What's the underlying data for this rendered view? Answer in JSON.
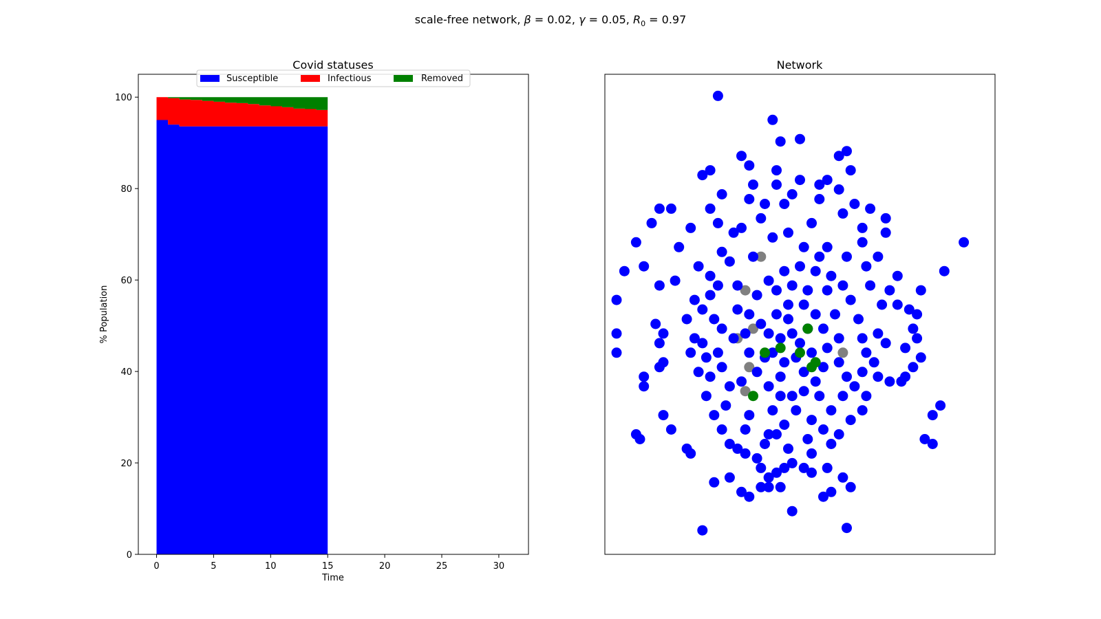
{
  "figure": {
    "suptitle_prefix": "scale-free network, ",
    "beta_symbol": "β",
    "beta_value": " = 0.02, ",
    "gamma_symbol": "γ",
    "gamma_value": " = 0.05, ",
    "r_symbol": "R",
    "r_subscript": "0",
    "r_value": " = 0.97"
  },
  "chart_data": [
    {
      "type": "area",
      "stacked": true,
      "title": "Covid statuses",
      "xlabel": "Time",
      "ylabel": "% Population",
      "xlim": [
        -1.6,
        32.6
      ],
      "ylim": [
        0,
        105
      ],
      "xticks": [
        0,
        5,
        10,
        15,
        20,
        25,
        30
      ],
      "yticks": [
        0,
        20,
        40,
        60,
        80,
        100
      ],
      "legend_position": "top-center",
      "x": [
        0,
        1,
        2,
        3,
        4,
        5,
        6,
        7,
        8,
        9,
        10,
        11,
        12,
        13,
        14,
        15
      ],
      "series": [
        {
          "name": "Susceptible",
          "color": "#0000ff",
          "values": [
            95.0,
            94.0,
            93.6,
            93.6,
            93.6,
            93.6,
            93.6,
            93.6,
            93.6,
            93.6,
            93.6,
            93.6,
            93.6,
            93.6,
            93.6,
            93.6
          ]
        },
        {
          "name": "Infectious",
          "color": "#ff0000",
          "values": [
            5.0,
            5.8,
            5.9,
            5.8,
            5.6,
            5.4,
            5.2,
            5.1,
            4.9,
            4.6,
            4.4,
            4.2,
            3.9,
            3.8,
            3.6,
            3.4
          ]
        },
        {
          "name": "Removed",
          "color": "#008000",
          "values": [
            0.0,
            0.2,
            0.5,
            0.6,
            0.8,
            1.0,
            1.2,
            1.3,
            1.5,
            1.8,
            2.0,
            2.2,
            2.5,
            2.6,
            2.8,
            3.0
          ]
        }
      ]
    },
    {
      "type": "scatter",
      "title": "Network",
      "axes_ticks": false,
      "node_colors": {
        "susceptible": "#0000ff",
        "removed": "#008000",
        "other": "#808080"
      },
      "xlim": [
        0,
        1
      ],
      "ylim": [
        0,
        1
      ],
      "nodes": {
        "susceptible": [
          [
            0.29,
            0.955
          ],
          [
            0.43,
            0.905
          ],
          [
            0.45,
            0.86
          ],
          [
            0.5,
            0.865
          ],
          [
            0.62,
            0.84
          ],
          [
            0.35,
            0.83
          ],
          [
            0.37,
            0.81
          ],
          [
            0.44,
            0.8
          ],
          [
            0.25,
            0.79
          ],
          [
            0.27,
            0.8
          ],
          [
            0.6,
            0.83
          ],
          [
            0.63,
            0.8
          ],
          [
            0.57,
            0.78
          ],
          [
            0.3,
            0.75
          ],
          [
            0.37,
            0.74
          ],
          [
            0.46,
            0.73
          ],
          [
            0.14,
            0.72
          ],
          [
            0.17,
            0.72
          ],
          [
            0.22,
            0.68
          ],
          [
            0.08,
            0.65
          ],
          [
            0.12,
            0.69
          ],
          [
            0.19,
            0.64
          ],
          [
            0.27,
            0.72
          ],
          [
            0.29,
            0.69
          ],
          [
            0.72,
            0.7
          ],
          [
            0.72,
            0.67
          ],
          [
            0.05,
            0.59
          ],
          [
            0.1,
            0.6
          ],
          [
            0.03,
            0.53
          ],
          [
            0.18,
            0.57
          ],
          [
            0.14,
            0.56
          ],
          [
            0.81,
            0.55
          ],
          [
            0.92,
            0.65
          ],
          [
            0.87,
            0.59
          ],
          [
            0.43,
            0.66
          ],
          [
            0.51,
            0.64
          ],
          [
            0.55,
            0.62
          ],
          [
            0.62,
            0.62
          ],
          [
            0.67,
            0.6
          ],
          [
            0.75,
            0.58
          ],
          [
            0.73,
            0.55
          ],
          [
            0.75,
            0.52
          ],
          [
            0.78,
            0.51
          ],
          [
            0.8,
            0.5
          ],
          [
            0.79,
            0.47
          ],
          [
            0.8,
            0.45
          ],
          [
            0.77,
            0.43
          ],
          [
            0.03,
            0.46
          ],
          [
            0.03,
            0.42
          ],
          [
            0.13,
            0.48
          ],
          [
            0.15,
            0.46
          ],
          [
            0.14,
            0.44
          ],
          [
            0.15,
            0.4
          ],
          [
            0.14,
            0.39
          ],
          [
            0.1,
            0.37
          ],
          [
            0.1,
            0.35
          ],
          [
            0.15,
            0.29
          ],
          [
            0.17,
            0.26
          ],
          [
            0.08,
            0.25
          ],
          [
            0.09,
            0.24
          ],
          [
            0.73,
            0.36
          ],
          [
            0.76,
            0.36
          ],
          [
            0.77,
            0.37
          ],
          [
            0.79,
            0.39
          ],
          [
            0.81,
            0.41
          ],
          [
            0.84,
            0.29
          ],
          [
            0.86,
            0.31
          ],
          [
            0.84,
            0.23
          ],
          [
            0.82,
            0.24
          ],
          [
            0.21,
            0.22
          ],
          [
            0.22,
            0.21
          ],
          [
            0.3,
            0.26
          ],
          [
            0.32,
            0.23
          ],
          [
            0.34,
            0.22
          ],
          [
            0.36,
            0.21
          ],
          [
            0.4,
            0.18
          ],
          [
            0.42,
            0.16
          ],
          [
            0.44,
            0.17
          ],
          [
            0.46,
            0.18
          ],
          [
            0.48,
            0.19
          ],
          [
            0.51,
            0.18
          ],
          [
            0.53,
            0.17
          ],
          [
            0.57,
            0.18
          ],
          [
            0.61,
            0.16
          ],
          [
            0.63,
            0.14
          ],
          [
            0.4,
            0.14
          ],
          [
            0.42,
            0.14
          ],
          [
            0.45,
            0.14
          ],
          [
            0.32,
            0.16
          ],
          [
            0.28,
            0.15
          ],
          [
            0.35,
            0.13
          ],
          [
            0.37,
            0.12
          ],
          [
            0.48,
            0.09
          ],
          [
            0.58,
            0.13
          ],
          [
            0.56,
            0.12
          ],
          [
            0.25,
            0.05
          ],
          [
            0.62,
            0.055
          ],
          [
            0.39,
            0.2
          ],
          [
            0.42,
            0.25
          ],
          [
            0.46,
            0.27
          ],
          [
            0.49,
            0.3
          ],
          [
            0.53,
            0.28
          ],
          [
            0.56,
            0.26
          ],
          [
            0.58,
            0.3
          ],
          [
            0.61,
            0.33
          ],
          [
            0.64,
            0.35
          ],
          [
            0.66,
            0.38
          ],
          [
            0.67,
            0.42
          ],
          [
            0.66,
            0.45
          ],
          [
            0.65,
            0.49
          ],
          [
            0.63,
            0.53
          ],
          [
            0.61,
            0.56
          ],
          [
            0.58,
            0.58
          ],
          [
            0.54,
            0.59
          ],
          [
            0.5,
            0.6
          ],
          [
            0.46,
            0.59
          ],
          [
            0.42,
            0.57
          ],
          [
            0.39,
            0.54
          ],
          [
            0.37,
            0.5
          ],
          [
            0.36,
            0.46
          ],
          [
            0.37,
            0.42
          ],
          [
            0.39,
            0.38
          ],
          [
            0.42,
            0.35
          ],
          [
            0.45,
            0.33
          ],
          [
            0.48,
            0.33
          ],
          [
            0.51,
            0.34
          ],
          [
            0.54,
            0.36
          ],
          [
            0.56,
            0.39
          ],
          [
            0.57,
            0.43
          ],
          [
            0.56,
            0.47
          ],
          [
            0.54,
            0.5
          ],
          [
            0.51,
            0.52
          ],
          [
            0.47,
            0.52
          ],
          [
            0.44,
            0.5
          ],
          [
            0.42,
            0.46
          ],
          [
            0.43,
            0.42
          ],
          [
            0.46,
            0.4
          ],
          [
            0.49,
            0.41
          ],
          [
            0.5,
            0.44
          ],
          [
            0.48,
            0.46
          ],
          [
            0.45,
            0.45
          ],
          [
            0.47,
            0.49
          ],
          [
            0.52,
            0.47
          ],
          [
            0.53,
            0.42
          ],
          [
            0.4,
            0.48
          ],
          [
            0.52,
            0.55
          ],
          [
            0.44,
            0.55
          ],
          [
            0.55,
            0.33
          ],
          [
            0.43,
            0.3
          ],
          [
            0.6,
            0.45
          ],
          [
            0.6,
            0.4
          ],
          [
            0.34,
            0.56
          ],
          [
            0.35,
            0.36
          ],
          [
            0.59,
            0.5
          ],
          [
            0.38,
            0.62
          ],
          [
            0.57,
            0.64
          ],
          [
            0.47,
            0.67
          ],
          [
            0.53,
            0.69
          ],
          [
            0.4,
            0.7
          ],
          [
            0.33,
            0.67
          ],
          [
            0.66,
            0.65
          ],
          [
            0.68,
            0.56
          ],
          [
            0.7,
            0.46
          ],
          [
            0.69,
            0.4
          ],
          [
            0.67,
            0.33
          ],
          [
            0.63,
            0.28
          ],
          [
            0.58,
            0.23
          ],
          [
            0.53,
            0.21
          ],
          [
            0.47,
            0.22
          ],
          [
            0.41,
            0.23
          ],
          [
            0.36,
            0.26
          ],
          [
            0.31,
            0.31
          ],
          [
            0.27,
            0.37
          ],
          [
            0.25,
            0.44
          ],
          [
            0.25,
            0.51
          ],
          [
            0.27,
            0.58
          ],
          [
            0.3,
            0.63
          ],
          [
            0.35,
            0.68
          ],
          [
            0.41,
            0.73
          ],
          [
            0.48,
            0.75
          ],
          [
            0.55,
            0.74
          ],
          [
            0.61,
            0.71
          ],
          [
            0.66,
            0.68
          ],
          [
            0.7,
            0.62
          ],
          [
            0.71,
            0.52
          ],
          [
            0.72,
            0.44
          ],
          [
            0.7,
            0.37
          ],
          [
            0.66,
            0.3
          ],
          [
            0.6,
            0.25
          ],
          [
            0.52,
            0.24
          ],
          [
            0.44,
            0.25
          ],
          [
            0.37,
            0.29
          ],
          [
            0.32,
            0.35
          ],
          [
            0.29,
            0.42
          ],
          [
            0.28,
            0.49
          ],
          [
            0.29,
            0.56
          ],
          [
            0.32,
            0.61
          ],
          [
            0.23,
            0.45
          ],
          [
            0.24,
            0.38
          ],
          [
            0.26,
            0.33
          ],
          [
            0.28,
            0.29
          ],
          [
            0.23,
            0.53
          ],
          [
            0.24,
            0.6
          ],
          [
            0.21,
            0.49
          ],
          [
            0.22,
            0.42
          ],
          [
            0.26,
            0.41
          ],
          [
            0.3,
            0.39
          ],
          [
            0.3,
            0.47
          ],
          [
            0.27,
            0.54
          ],
          [
            0.38,
            0.77
          ],
          [
            0.44,
            0.77
          ],
          [
            0.5,
            0.78
          ],
          [
            0.55,
            0.77
          ],
          [
            0.6,
            0.76
          ],
          [
            0.64,
            0.73
          ],
          [
            0.68,
            0.72
          ],
          [
            0.57,
            0.55
          ],
          [
            0.48,
            0.56
          ],
          [
            0.41,
            0.41
          ],
          [
            0.51,
            0.38
          ],
          [
            0.45,
            0.37
          ],
          [
            0.62,
            0.37
          ],
          [
            0.33,
            0.45
          ],
          [
            0.34,
            0.51
          ]
        ],
        "removed": [
          [
            0.41,
            0.42
          ],
          [
            0.45,
            0.43
          ],
          [
            0.5,
            0.42
          ],
          [
            0.52,
            0.47
          ],
          [
            0.53,
            0.39
          ],
          [
            0.54,
            0.4
          ],
          [
            0.38,
            0.33
          ]
        ],
        "other": [
          [
            0.36,
            0.55
          ],
          [
            0.38,
            0.47
          ],
          [
            0.34,
            0.45
          ],
          [
            0.37,
            0.39
          ],
          [
            0.36,
            0.34
          ],
          [
            0.61,
            0.42
          ],
          [
            0.4,
            0.62
          ]
        ]
      }
    }
  ]
}
